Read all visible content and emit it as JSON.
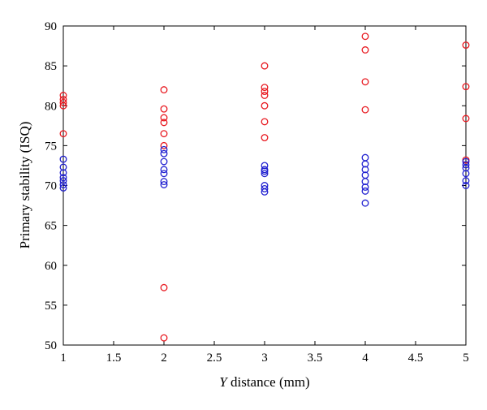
{
  "chart_data": {
    "type": "scatter",
    "xlabel_var": "Y",
    "xlabel_rest": " distance (mm)",
    "ylabel": "Primary stability (ISQ)",
    "xlim": [
      1,
      5
    ],
    "ylim": [
      50,
      90
    ],
    "xticks": [
      "1",
      "1.5",
      "2",
      "2.5",
      "3",
      "3.5",
      "4",
      "4.5",
      "5"
    ],
    "yticks": [
      "50",
      "55",
      "60",
      "65",
      "70",
      "75",
      "80",
      "85",
      "90"
    ],
    "grid": false,
    "legend": "none",
    "marker": "open-circle",
    "series": [
      {
        "color": "#e8181f",
        "points": [
          [
            1,
            81.3
          ],
          [
            1,
            80.8
          ],
          [
            1,
            80.4
          ],
          [
            1,
            80.0
          ],
          [
            1,
            76.5
          ],
          [
            2,
            82.0
          ],
          [
            2,
            79.6
          ],
          [
            2,
            78.5
          ],
          [
            2,
            77.9
          ],
          [
            2,
            76.5
          ],
          [
            2,
            75.0
          ],
          [
            2,
            57.2
          ],
          [
            2,
            50.9
          ],
          [
            3,
            85.0
          ],
          [
            3,
            82.3
          ],
          [
            3,
            81.8
          ],
          [
            3,
            81.3
          ],
          [
            3,
            80.0
          ],
          [
            3,
            78.0
          ],
          [
            3,
            76.0
          ],
          [
            4,
            88.7
          ],
          [
            4,
            87.0
          ],
          [
            4,
            83.0
          ],
          [
            4,
            79.5
          ],
          [
            5,
            87.6
          ],
          [
            5,
            82.4
          ],
          [
            5,
            78.4
          ],
          [
            5,
            73.2
          ]
        ]
      },
      {
        "color": "#1f1fd0",
        "points": [
          [
            1,
            73.3
          ],
          [
            1,
            72.3
          ],
          [
            1,
            71.6
          ],
          [
            1,
            71.0
          ],
          [
            1,
            70.6
          ],
          [
            1,
            70.1
          ],
          [
            1,
            69.7
          ],
          [
            2,
            74.5
          ],
          [
            2,
            74.0
          ],
          [
            2,
            73.0
          ],
          [
            2,
            72.0
          ],
          [
            2,
            71.5
          ],
          [
            2,
            70.5
          ],
          [
            2,
            70.1
          ],
          [
            3,
            72.5
          ],
          [
            3,
            72.0
          ],
          [
            3,
            71.8
          ],
          [
            3,
            71.5
          ],
          [
            3,
            70.0
          ],
          [
            3,
            69.6
          ],
          [
            3,
            69.2
          ],
          [
            4,
            73.5
          ],
          [
            4,
            72.7
          ],
          [
            4,
            72.0
          ],
          [
            4,
            71.3
          ],
          [
            4,
            70.5
          ],
          [
            4,
            69.8
          ],
          [
            4,
            69.3
          ],
          [
            4,
            67.8
          ],
          [
            5,
            73.0
          ],
          [
            5,
            72.6
          ],
          [
            5,
            72.2
          ],
          [
            5,
            71.5
          ],
          [
            5,
            70.6
          ],
          [
            5,
            70.0
          ]
        ]
      }
    ]
  }
}
